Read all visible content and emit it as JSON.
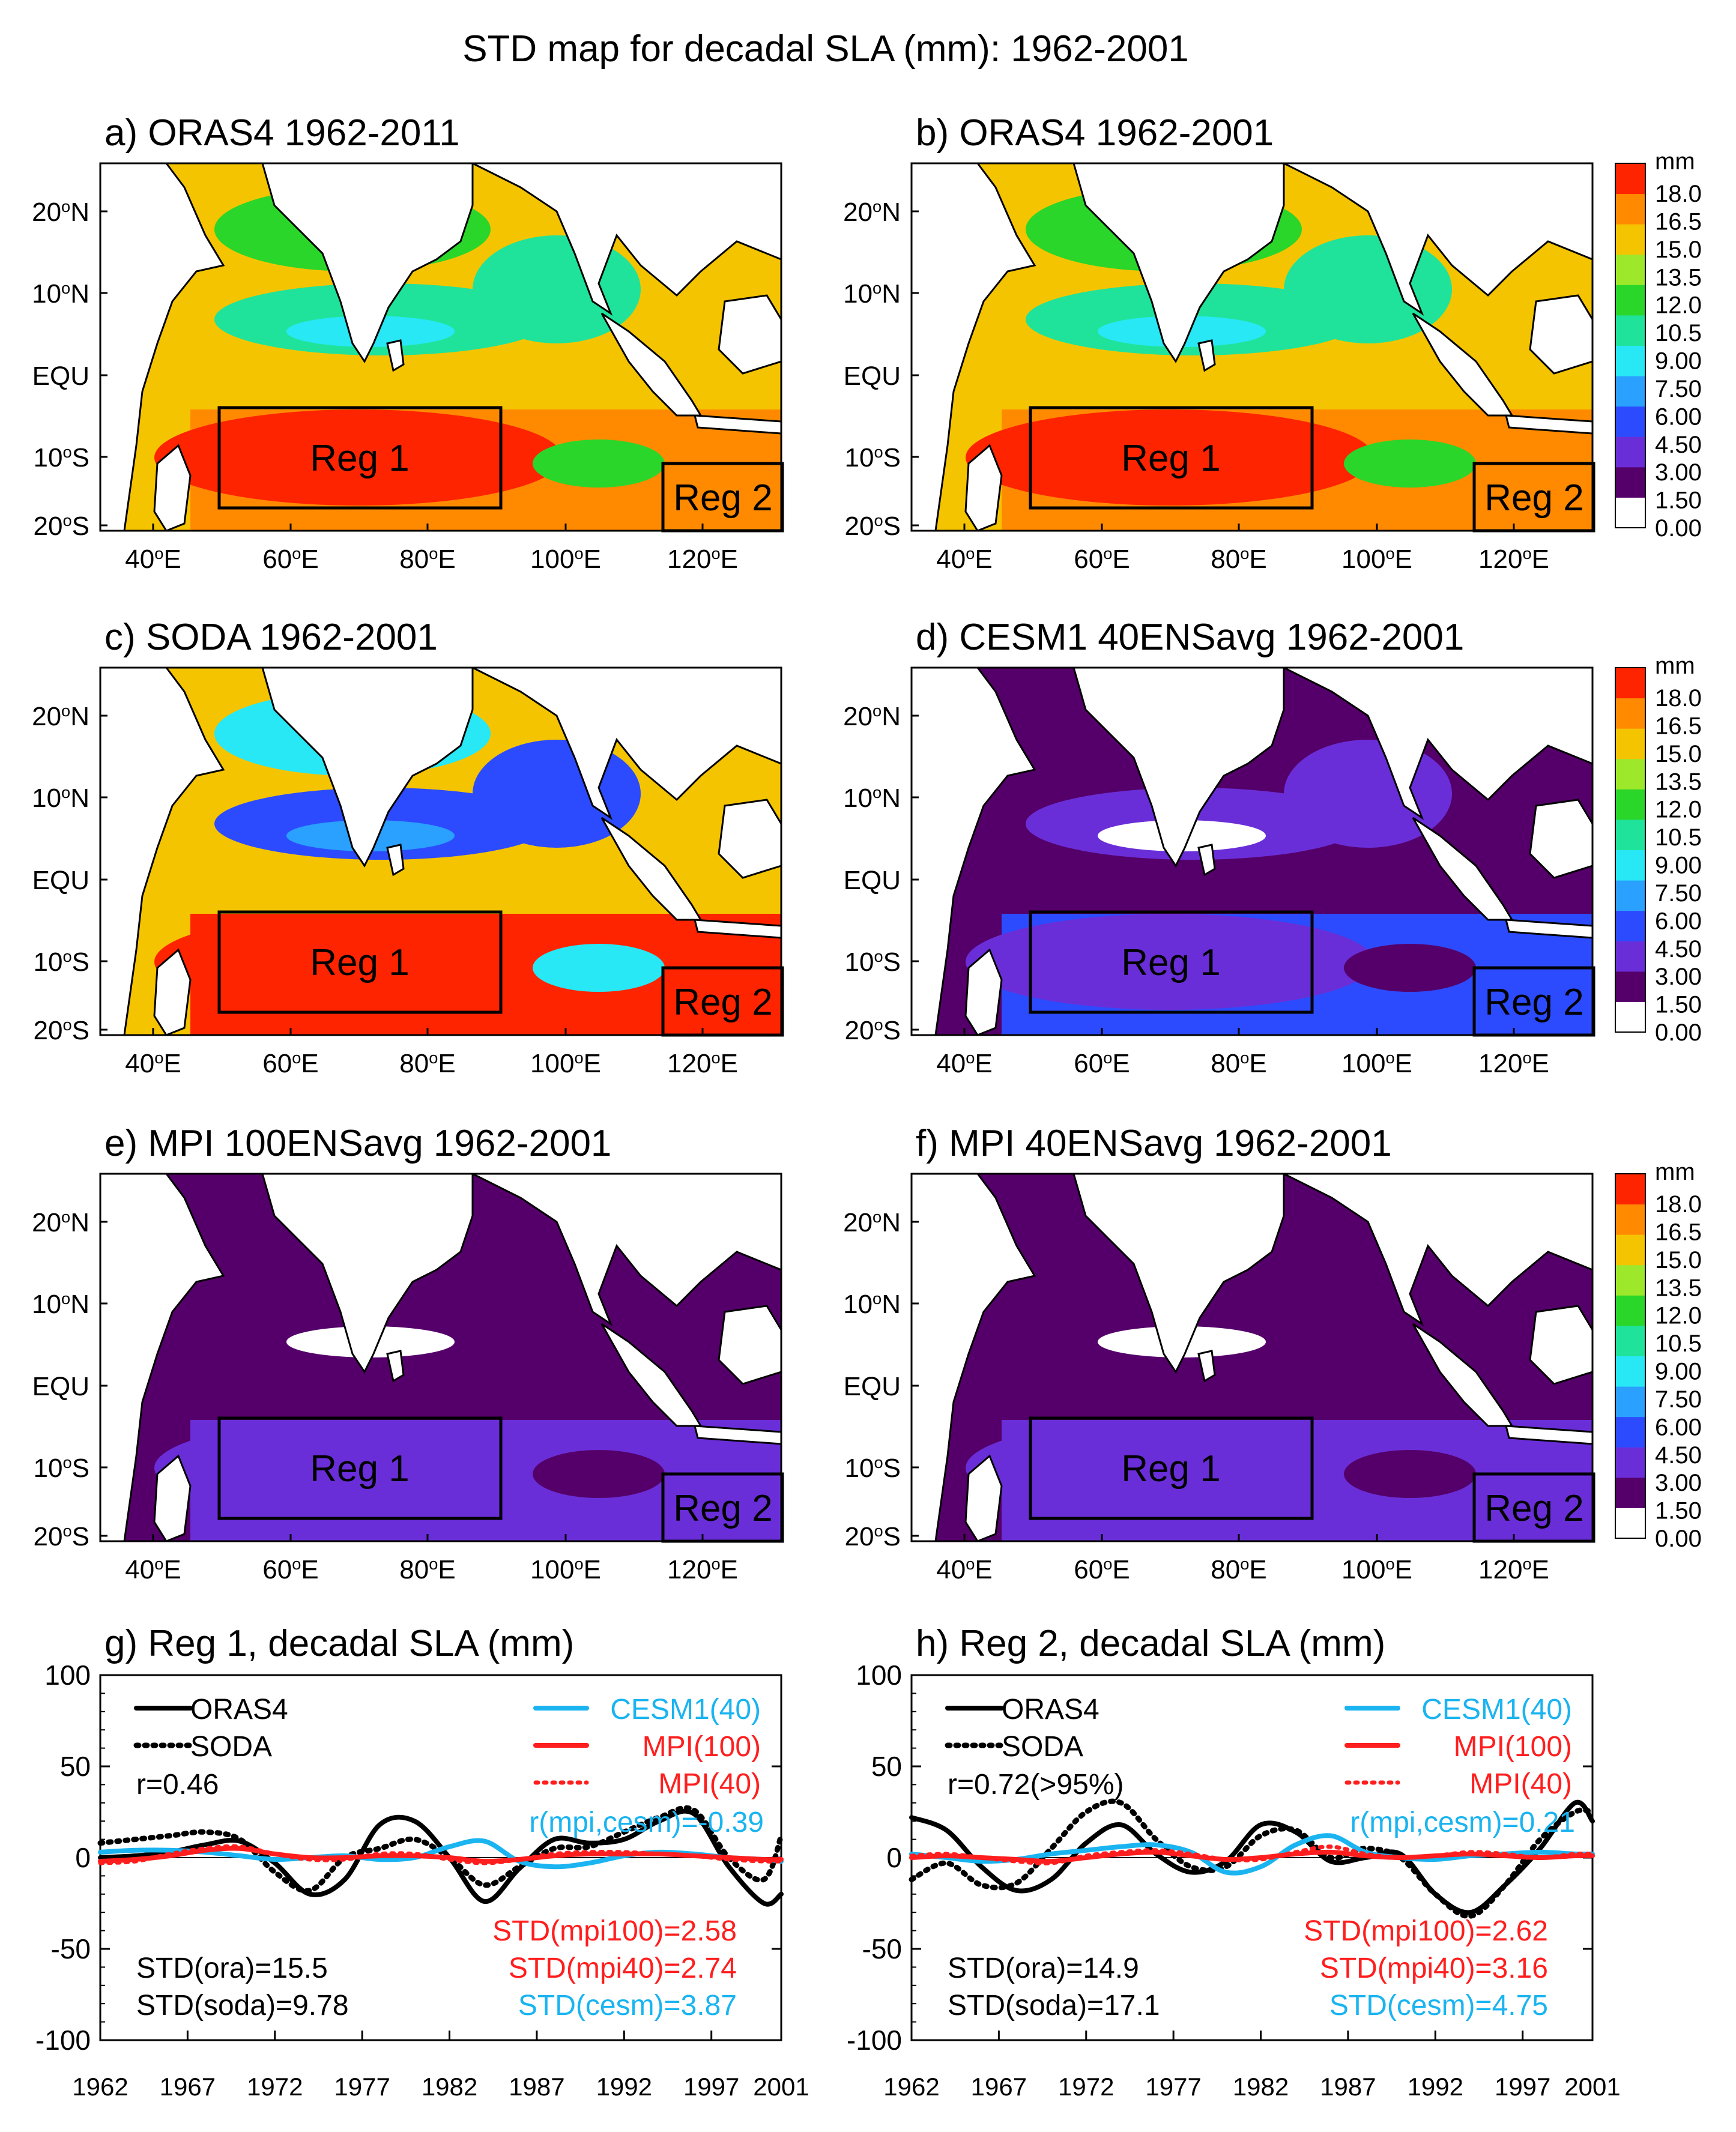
{
  "figure_title": "STD map for decadal SLA (mm): 1962-2001",
  "colors": {
    "colorbar": [
      "#ffffff",
      "#55006a",
      "#6a2ed8",
      "#2c4bff",
      "#2aa0ff",
      "#27e8f4",
      "#1fe39a",
      "#2ad62a",
      "#9de82a",
      "#f5c400",
      "#ff8a00",
      "#ff2400"
    ],
    "black": "#000000",
    "cesm": "#1ab4f0",
    "mpi": "#ff1e1e"
  },
  "colorbar": {
    "unit": "mm",
    "ticks": [
      "18.0",
      "16.5",
      "15.0",
      "13.5",
      "12.0",
      "10.5",
      "9.00",
      "7.50",
      "6.00",
      "4.50",
      "3.00",
      "1.50",
      "0.00"
    ]
  },
  "map_axes": {
    "lon_labels": [
      "40°E",
      "60°E",
      "80°E",
      "100°E",
      "120°E"
    ],
    "lat_labels": [
      "20°N",
      "10°N",
      "EQU",
      "10°S",
      "20°S"
    ]
  },
  "regions": [
    "Reg 1",
    "Reg 2"
  ],
  "map_panels": [
    {
      "title": "a) ORAS4 1962-2011",
      "palette": "high"
    },
    {
      "title": "b) ORAS4 1962-2001",
      "palette": "high"
    },
    {
      "title": "c) SODA 1962-2001",
      "palette": "soda"
    },
    {
      "title": "d) CESM1 40ENSavg 1962-2001",
      "palette": "low"
    },
    {
      "title": "e) MPI 100ENSavg 1962-2001",
      "palette": "vlow"
    },
    {
      "title": "f) MPI 40ENSavg 1962-2001",
      "palette": "vlow"
    }
  ],
  "chart_data": [
    {
      "type": "line",
      "title": "g) Reg 1, decadal SLA (mm)",
      "xlabel": "",
      "ylabel": "",
      "xlim": [
        1962,
        2001
      ],
      "ylim": [
        -100,
        100
      ],
      "yticks": [
        "100",
        "50",
        "0",
        "-50",
        "-100"
      ],
      "xticks": [
        "1962",
        "1967",
        "1972",
        "1977",
        "1982",
        "1987",
        "1992",
        "1997",
        "2001"
      ],
      "x": [
        1962,
        1964,
        1966,
        1968,
        1970,
        1972,
        1974,
        1976,
        1978,
        1980,
        1982,
        1984,
        1986,
        1988,
        1990,
        1992,
        1994,
        1996,
        1998,
        2000,
        2001
      ],
      "series": [
        {
          "name": "ORAS4",
          "style": "solid-black",
          "values": [
            0,
            1,
            3,
            7,
            9,
            -3,
            -20,
            -12,
            18,
            20,
            0,
            -24,
            -6,
            10,
            8,
            10,
            20,
            24,
            -5,
            -25,
            -20
          ]
        },
        {
          "name": "SODA",
          "style": "dotted-black",
          "values": [
            8,
            10,
            12,
            14,
            10,
            -8,
            -18,
            0,
            5,
            10,
            0,
            -15,
            -5,
            5,
            6,
            14,
            22,
            26,
            0,
            -12,
            12
          ]
        },
        {
          "name": "CESM1(40)",
          "style": "solid-cyan",
          "values": [
            3,
            4,
            4,
            3,
            1,
            -1,
            0,
            1,
            -1,
            0,
            6,
            9,
            -2,
            -5,
            -3,
            1,
            3,
            2,
            0,
            -1,
            -2
          ]
        },
        {
          "name": "MPI(100)",
          "style": "solid-red",
          "values": [
            -2,
            -1,
            1,
            4,
            5,
            2,
            0,
            0,
            1,
            1,
            0,
            -2,
            -1,
            1,
            2,
            2,
            2,
            1,
            0,
            -1,
            -1
          ]
        },
        {
          "name": "MPI(40)",
          "style": "dotted-red",
          "values": [
            -3,
            -2,
            2,
            5,
            6,
            2,
            -1,
            -1,
            2,
            2,
            -1,
            -3,
            -1,
            2,
            3,
            3,
            2,
            1,
            -1,
            -2,
            -2
          ]
        }
      ],
      "legend_left": [
        "ORAS4",
        "SODA"
      ],
      "legend_right": [
        "CESM1(40)",
        "MPI(100)",
        "MPI(40)"
      ],
      "corr": "r=0.46",
      "corr_model": "r(mpi,cesm)=-0.39",
      "std_left": [
        "STD(ora)=15.5",
        "STD(soda)=9.78"
      ],
      "std_right": [
        "STD(mpi100)=2.58",
        "STD(mpi40)=2.74",
        "STD(cesm)=3.87"
      ]
    },
    {
      "type": "line",
      "title": "h) Reg 2, decadal SLA (mm)",
      "xlabel": "",
      "ylabel": "",
      "xlim": [
        1962,
        2001
      ],
      "ylim": [
        -100,
        100
      ],
      "yticks": [
        "100",
        "50",
        "0",
        "-50",
        "-100"
      ],
      "xticks": [
        "1962",
        "1967",
        "1972",
        "1977",
        "1982",
        "1987",
        "1992",
        "1997",
        "2001"
      ],
      "x": [
        1962,
        1964,
        1966,
        1968,
        1970,
        1972,
        1974,
        1976,
        1978,
        1980,
        1982,
        1984,
        1986,
        1988,
        1990,
        1992,
        1994,
        1996,
        1998,
        2000,
        2001
      ],
      "series": [
        {
          "name": "ORAS4",
          "style": "solid-black",
          "values": [
            22,
            15,
            -5,
            -18,
            -12,
            8,
            18,
            2,
            -8,
            -2,
            18,
            14,
            -2,
            0,
            2,
            -20,
            -30,
            -15,
            5,
            30,
            20
          ]
        },
        {
          "name": "SODA",
          "style": "dotted-black",
          "values": [
            -12,
            -3,
            -15,
            -14,
            5,
            25,
            30,
            10,
            -5,
            -5,
            12,
            15,
            0,
            5,
            0,
            -20,
            -32,
            -15,
            10,
            25,
            25
          ]
        },
        {
          "name": "CESM1(40)",
          "style": "solid-cyan",
          "values": [
            2,
            0,
            -2,
            -1,
            2,
            4,
            6,
            7,
            3,
            -8,
            -5,
            7,
            12,
            3,
            0,
            -1,
            1,
            2,
            3,
            2,
            2
          ]
        },
        {
          "name": "MPI(100)",
          "style": "solid-red",
          "values": [
            0,
            1,
            0,
            -1,
            -2,
            0,
            2,
            3,
            1,
            -1,
            0,
            2,
            3,
            1,
            0,
            1,
            2,
            1,
            0,
            1,
            1
          ]
        },
        {
          "name": "MPI(40)",
          "style": "dotted-red",
          "values": [
            1,
            2,
            0,
            -2,
            -3,
            1,
            3,
            4,
            2,
            -1,
            -1,
            3,
            6,
            2,
            0,
            1,
            3,
            2,
            0,
            2,
            2
          ]
        }
      ],
      "legend_left": [
        "ORAS4",
        "SODA"
      ],
      "legend_right": [
        "CESM1(40)",
        "MPI(100)",
        "MPI(40)"
      ],
      "corr": "r=0.72(>95%)",
      "corr_model": "r(mpi,cesm)=0.21",
      "std_left": [
        "STD(ora)=14.9",
        "STD(soda)=17.1"
      ],
      "std_right": [
        "STD(mpi100)=2.62",
        "STD(mpi40)=3.16",
        "STD(cesm)=4.75"
      ]
    }
  ]
}
